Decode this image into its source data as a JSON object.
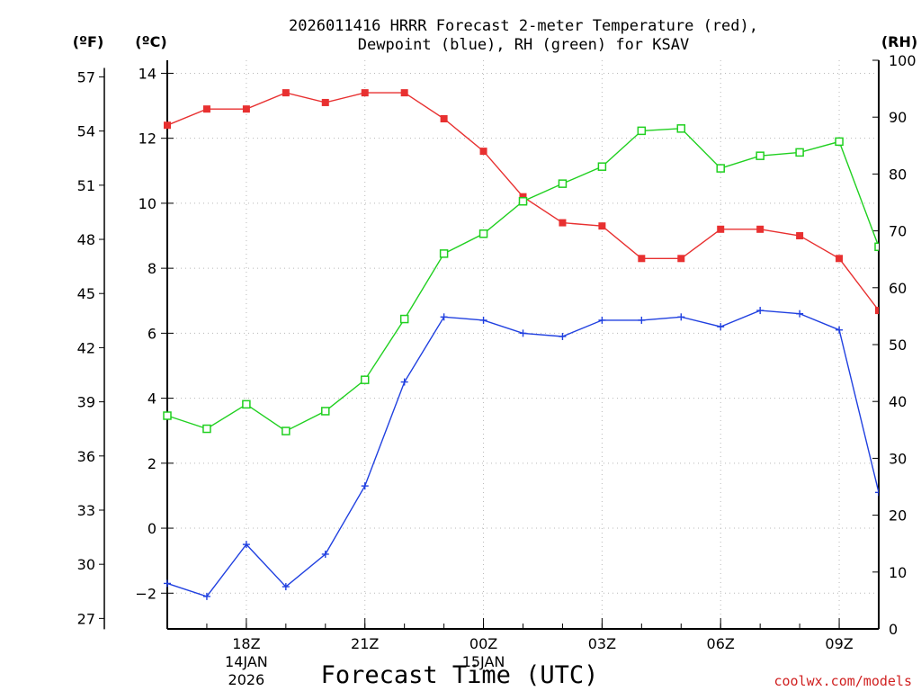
{
  "chart_data": {
    "type": "line",
    "title_line1": "2026011416 HRRR Forecast 2-meter Temperature (red),",
    "title_line2": "Dewpoint (blue), RH (green) for KSAV",
    "units": {
      "fahrenheit": "(ºF)",
      "celsius": "(ºC)",
      "rh": "(RH)"
    },
    "xlabel": "Forecast Time (UTC)",
    "credit": "coolwx.com/models",
    "x_hours": [
      16,
      17,
      18,
      19,
      20,
      21,
      22,
      23,
      24,
      25,
      26,
      27,
      28,
      29,
      30,
      31,
      32,
      33,
      34
    ],
    "xlim": [
      16,
      34
    ],
    "x_ticks": [
      {
        "hour": 18,
        "label": "18Z",
        "date_line1": "14JAN",
        "date_line2": "2026"
      },
      {
        "hour": 21,
        "label": "21Z",
        "date_line1": "",
        "date_line2": ""
      },
      {
        "hour": 24,
        "label": "00Z",
        "date_line1": "15JAN",
        "date_line2": ""
      },
      {
        "hour": 27,
        "label": "03Z",
        "date_line1": "",
        "date_line2": ""
      },
      {
        "hour": 30,
        "label": "06Z",
        "date_line1": "",
        "date_line2": ""
      },
      {
        "hour": 33,
        "label": "09Z",
        "date_line1": "",
        "date_line2": ""
      }
    ],
    "ylim_celsius": [
      -3.1,
      14.4
    ],
    "y_ticks_celsius": [
      14,
      12,
      10,
      8,
      6,
      4,
      2,
      0,
      -2
    ],
    "y_ticks_fahrenheit": [
      57,
      54,
      51,
      48,
      45,
      42,
      39,
      36,
      33,
      30,
      27
    ],
    "ylim_rh": [
      0,
      100
    ],
    "y_ticks_rh": [
      100,
      90,
      80,
      70,
      60,
      50,
      40,
      30,
      20,
      10,
      0
    ],
    "series": [
      {
        "name": "Temperature",
        "axis": "celsius",
        "color": "#e83030",
        "marker": "filled-square",
        "values": [
          12.4,
          12.9,
          12.9,
          13.4,
          13.1,
          13.4,
          13.4,
          12.6,
          11.6,
          10.2,
          9.4,
          9.3,
          8.3,
          8.3,
          9.2,
          9.2,
          9.0,
          8.3,
          6.7
        ]
      },
      {
        "name": "Dewpoint",
        "axis": "celsius",
        "color": "#2040e0",
        "marker": "plus",
        "values": [
          -1.7,
          -2.1,
          -0.5,
          -1.8,
          -0.8,
          1.3,
          4.5,
          6.5,
          6.4,
          6.0,
          5.9,
          6.4,
          6.4,
          6.5,
          6.2,
          6.7,
          6.6,
          6.1,
          1.1
        ]
      },
      {
        "name": "Relative Humidity",
        "axis": "rh",
        "color": "#20d020",
        "marker": "open-square",
        "values": [
          37.5,
          35.2,
          39.5,
          34.8,
          38.3,
          43.8,
          54.5,
          66.0,
          69.5,
          75.2,
          78.3,
          81.3,
          87.6,
          88.0,
          81.0,
          83.2,
          83.8,
          85.7,
          67.2
        ]
      }
    ]
  }
}
